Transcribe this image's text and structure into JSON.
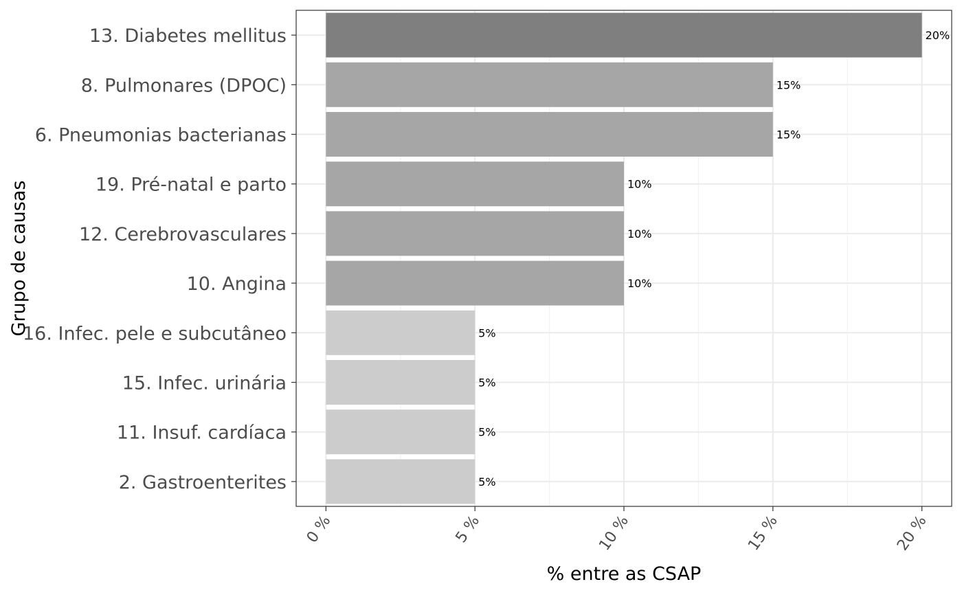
{
  "chart_data": {
    "type": "bar",
    "orientation": "horizontal",
    "categories": [
      "13. Diabetes mellitus",
      "8. Pulmonares (DPOC)",
      "6. Pneumonias bacterianas",
      "19. Pré-natal e parto",
      "12. Cerebrovasculares",
      "10. Angina",
      "16. Infec. pele e subcutâneo",
      "15. Infec. urinária",
      "11. Insuf. cardíaca",
      "2. Gastroenterites"
    ],
    "values": [
      20,
      15,
      15,
      10,
      10,
      10,
      5,
      5,
      5,
      5
    ],
    "data_labels": [
      "20%",
      "15%",
      "15%",
      "10%",
      "10%",
      "10%",
      "5%",
      "5%",
      "5%",
      "5%"
    ],
    "bar_colors": [
      "#7f7f7f",
      "#a6a6a6",
      "#a6a6a6",
      "#a6a6a6",
      "#a6a6a6",
      "#a6a6a6",
      "#cccccc",
      "#cccccc",
      "#cccccc",
      "#cccccc"
    ],
    "x_ticks": [
      0,
      5,
      10,
      15,
      20
    ],
    "x_tick_labels": [
      "0 %",
      "5 %",
      "10 %",
      "15 %",
      "20 %"
    ],
    "xlim": [
      -1,
      21
    ],
    "xlabel": "% entre as CSAP",
    "ylabel": "Grupo de causas",
    "grid": true,
    "legend": "none"
  }
}
